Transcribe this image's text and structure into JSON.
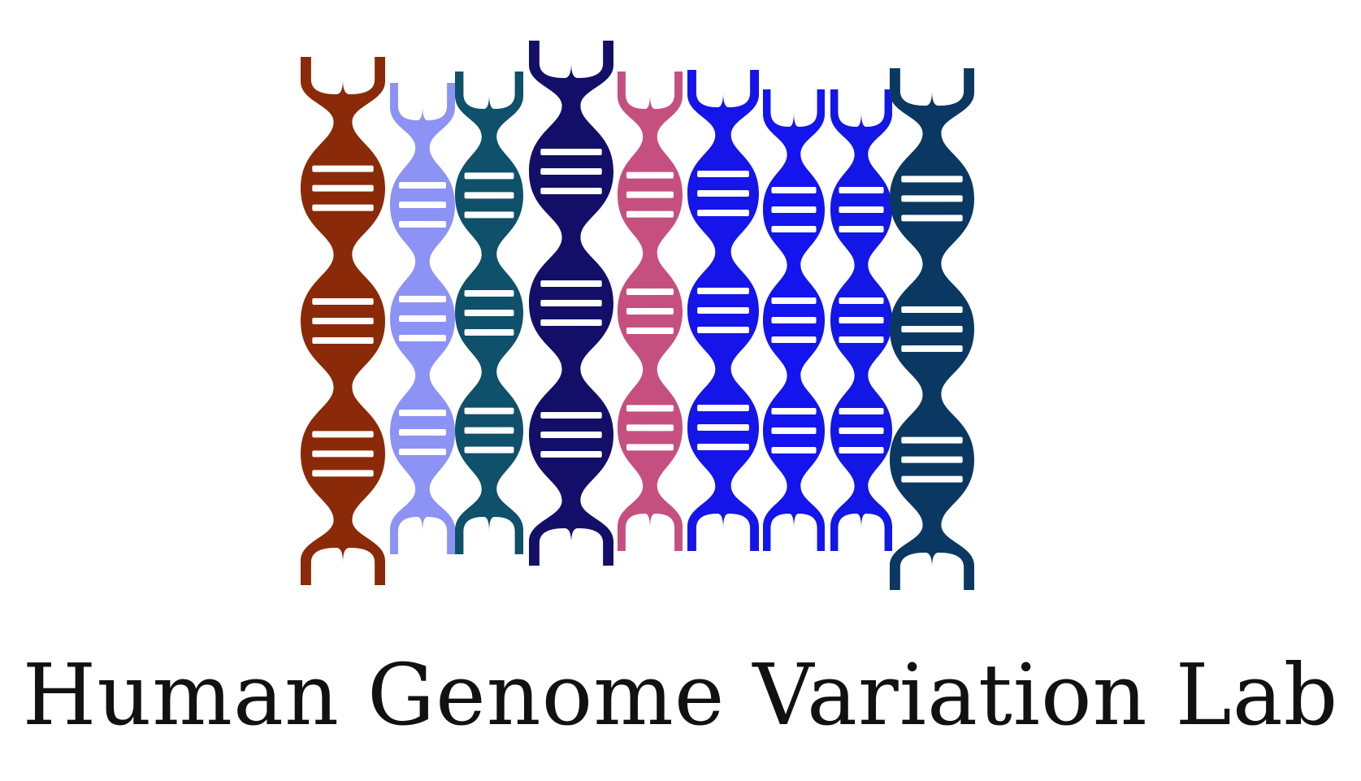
{
  "logo": {
    "lab_name": "Human Genome Variation Lab",
    "icon": "dna-helix-icon",
    "helix_colors": [
      "#8a2a08",
      "#8c93f5",
      "#0f506a",
      "#130f69",
      "#c5507f",
      "#1515ea",
      "#1414ee",
      "#1217e6",
      "#0b3862"
    ],
    "rung_color": "#ffffff"
  }
}
